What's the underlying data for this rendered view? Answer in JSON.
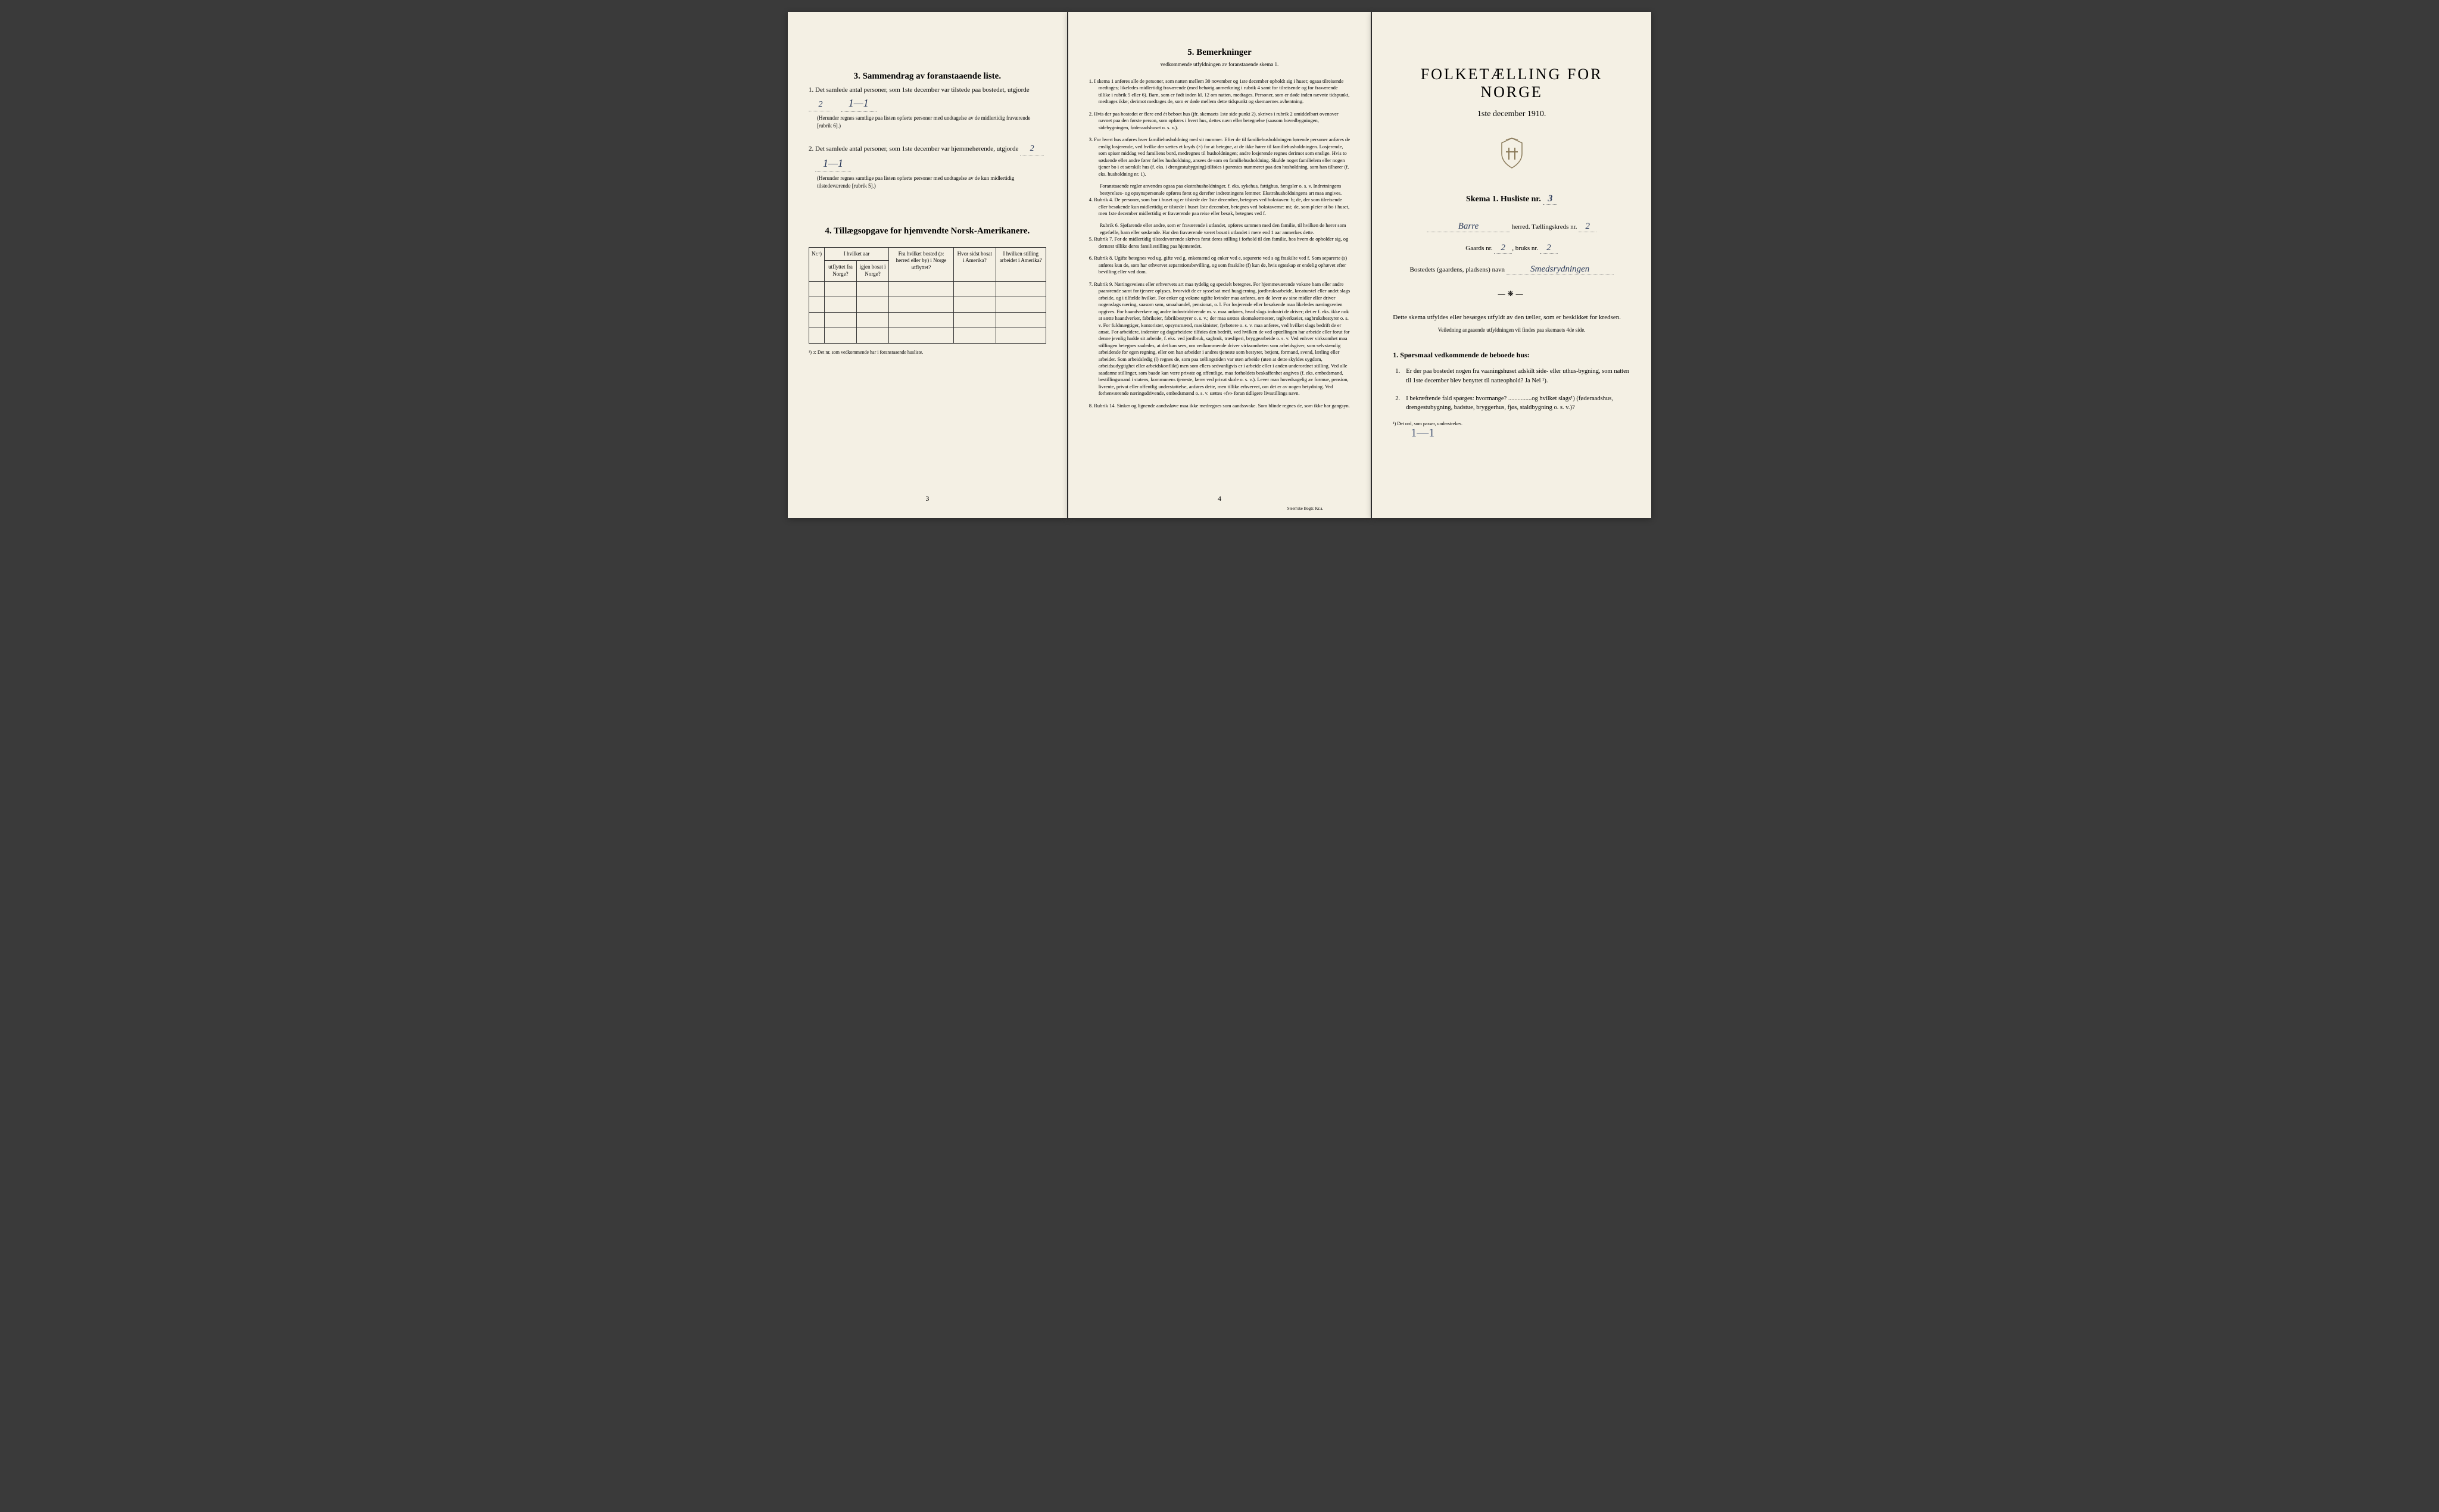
{
  "colors": {
    "paper": "#f4f0e4",
    "ink": "#1a1a1a",
    "handwriting": "#2a3a5a",
    "border": "#333333",
    "background": "#3a3a3a"
  },
  "typography": {
    "body_font": "Georgia serif",
    "handwriting_font": "cursive italic",
    "base_size_pt": 11,
    "small_size_pt": 9,
    "title_size_pt": 26
  },
  "page_left": {
    "section3": {
      "title": "3.  Sammendrag av foranstaaende liste.",
      "item1": {
        "text_before": "1.  Det samlede antal personer, som 1ste december var tilstede paa bostedet, utgjorde",
        "value": "2",
        "handwriting_mark": "1—1",
        "note": "(Herunder regnes samtlige paa listen opførte personer med undtagelse av de midlertidig fraværende [rubrik 6].)"
      },
      "item2": {
        "text_before": "2.  Det samlede antal personer, som 1ste december var hjemmehørende, utgjorde",
        "value": "2",
        "handwriting_mark": "1—1",
        "note": "(Herunder regnes samtlige paa listen opførte personer med undtagelse av de kun midlertidig tilstedeværende [rubrik 5].)"
      }
    },
    "section4": {
      "title": "4.  Tillægsopgave for hjemvendte Norsk-Amerikanere.",
      "table": {
        "headers": {
          "col1": "Nr.¹)",
          "col2_top": "I hvilket aar",
          "col2a": "utflyttet fra Norge?",
          "col2b": "igjen bosat i Norge?",
          "col3": "Fra hvilket bosted (ɔ: herred eller by) i Norge utflyttet?",
          "col4": "Hvor sidst bosat i Amerika?",
          "col5": "I hvilken stilling arbeidet i Amerika?"
        },
        "rows": [
          [
            "",
            "",
            "",
            "",
            ""
          ],
          [
            "",
            "",
            "",
            "",
            ""
          ],
          [
            "",
            "",
            "",
            "",
            ""
          ],
          [
            "",
            "",
            "",
            "",
            ""
          ]
        ],
        "row_count": 4
      },
      "table_note": "¹) ɔ: Det nr. som vedkommende har i foranstaaende husliste."
    },
    "page_number": "3"
  },
  "page_center": {
    "section5": {
      "title": "5.  Bemerkninger",
      "subtitle": "vedkommende utfyldningen av foranstaaende skema 1.",
      "items": [
        {
          "num": "1",
          "text": "I skema 1 anføres alle de personer, som natten mellem 30 november og 1ste december opholdt sig i huset; ogsaa tilreisende medtages; likeledes midlertidig fraværende (med behørig anmerkning i rubrik 4 samt for tilreisende og for fraværende tillike i rubrik 5 eller 6). Barn, som er født inden kl. 12 om natten, medtages. Personer, som er døde inden nævnte tidspunkt, medtages ikke; derimot medtages de, som er døde mellem dette tidspunkt og skemaernes avhentning."
        },
        {
          "num": "2",
          "text": "Hvis der paa bostedet er flere end ét beboet hus (jfr. skemaets 1ste side punkt 2), skrives i rubrik 2 umiddelbart ovenover navnet paa den første person, som opføres i hvert hus, dettes navn eller betegnelse (saasom hovedbygningen, sidebygningen, føderaadshuset o. s. v.)."
        },
        {
          "num": "3",
          "text": "For hvert hus anføres hver familiehusholdning med sit nummer. Efter de til familiehusholdningen hørende personer anføres de enslig losjerende, ved hvilke der sættes et kryds (×) for at betegne, at de ikke hører til familiehusholdningen. Losjerende, som spiser middag ved familiens bord, medregnes til husholdningen; andre losjerende regnes derimot som enslige. Hvis to søskende eller andre fører fælles husholdning, ansees de som en familiehusholdning. Skulde noget familielem eller nogen tjener bo i et særskilt hus (f. eks. i drengestubygning) tilføies i parentes nummeret paa den husholdning, som han tilhører (f. eks. husholdning nr. 1).",
          "sub": "Foranstaaende regler anvendes ogsaa paa ekstrahusholdninger, f. eks. sykehus, fattighus, fængsler o. s. v. Indretningens bestyrelses- og opsynspersonale opføres først og derefter indretningens lemmer. Ekstrahusholdningens art maa angives."
        },
        {
          "num": "4",
          "text": "Rubrik 4. De personer, som bor i huset og er tilstede der 1ste december, betegnes ved bokstaven: b; de, der som tilreisende eller besøkende kun midlertidig er tilstede i huset 1ste december, betegnes ved bokstaverne: mt; de, som pleier at bo i huset, men 1ste december midlertidig er fraværende paa reise eller besøk, betegnes ved f.",
          "sub": "Rubrik 6. Sjøfarende eller andre, som er fraværende i utlandet, opføres sammen med den familie, til hvilken de hører som egtefælle, barn eller søskende.\nHar den fraværende været bosat i utlandet i mere end 1 aar anmerkes dette."
        },
        {
          "num": "5",
          "text": "Rubrik 7. For de midlertidig tilstedeværende skrives først deres stilling i forhold til den familie, hos hvem de opholder sig, og dernæst tillike deres familiestilling paa hjemstedet."
        },
        {
          "num": "6",
          "text": "Rubrik 8. Ugifte betegnes ved ug, gifte ved g, enkemænd og enker ved e, separerte ved s og fraskilte ved f. Som separerte (s) anføres kun de, som har erhvervet separationsbevilling, og som fraskilte (f) kun de, hvis egteskap er endelig ophævet efter bevilling eller ved dom."
        },
        {
          "num": "7",
          "text": "Rubrik 9. Næringsveiens eller erhvervets art maa tydelig og specielt betegnes.\nFor hjemmeværende voksne barn eller andre paarørende samt for tjenere oplyses, hvorvidt de er sysselsat med husgjerning, jordbruksarbeide, kreaturstel eller andet slags arbeide, og i tilfælde hvilket. For enker og voksne ugifte kvinder maa anføres, om de lever av sine midler eller driver nogenslags næring, saasom søm, smaahandel, pensionat, o. l.\nFor losjerende eller besøkende maa likeledes næringsveien opgives.\nFor haandverkere og andre industridrivende m. v. maa anføres, hvad slags industri de driver; det er f. eks. ikke nok at sætte haandverker, fabrikeier, fabrikbestyrer o. s. v.; der maa sættes skomakermester, teglverkseier, sagbruksbestyrer o. s. v.\nFor fuldmægtiger, kontorister, opsynsmænd, maskinister, fyrbøtere o. s. v. maa anføres, ved hvilket slags bedrift de er ansat.\nFor arbeidere, inderster og dagarbeidere tilføies den bedrift, ved hvilken de ved optællingen har arbeide eller forut for denne jevnlig hadde sit arbeide, f. eks. ved jordbruk, sagbruk, træsliperi, bryggearbeide o. s. v.\nVed enhver virksomhet maa stillingen betegnes saaledes, at det kan sees, om vedkommende driver virksomheten som arbeidsgiver, som selvstændig arbeidende for egen regning, eller om han arbeider i andres tjeneste som bestyrer, betjent, formand, svend, lærling eller arbeider.\nSom arbeidsledig (l) regnes de, som paa tællingstiden var uten arbeide (uten at dette skyldes sygdom, arbeidsudygtighet eller arbeidskonflikt) men som ellers sedvanligvis er i arbeide eller i anden underordnet stilling.\nVed alle saadanne stillinger, som baade kan være private og offentlige, maa forholdets beskaffenhet angives (f. eks. embedsmand, bestillingsmand i statens, kommunens tjeneste, lærer ved privat skole o. s. v.).\nLever man hovedsagelig av formue, pension, livrente, privat eller offentlig understøttelse, anføres dette, men tillike erhvervet, om det er av nogen betydning.\nVed forhenværende næringsdrivende, embedsmænd o. s. v. sættes «fv» foran tidligere livsstillings navn."
        },
        {
          "num": "8",
          "text": "Rubrik 14. Sinker og lignende aandssløve maa ikke medregnes som aandssvake.\nSom blinde regnes de, som ikke har gangsyn."
        }
      ]
    },
    "page_number": "4",
    "printer": "Steen'ske Bogtr.  Kr.a."
  },
  "page_right": {
    "title_main": "FOLKETÆLLING FOR NORGE",
    "title_date": "1ste december 1910.",
    "skema_label": "Skema 1.  Husliste nr.",
    "skema_value": "3",
    "herred_label": "herred.   Tællingskreds nr.",
    "herred_value": "Barre",
    "kreds_value": "2",
    "gaards_label": "Gaards nr.",
    "gaards_value": "2",
    "bruks_label": "bruks nr.",
    "bruks_value": "2",
    "bosted_label": "Bostedets (gaardens, pladsens) navn",
    "bosted_value": "Smedsrydningen",
    "instruction": "Dette skema utfyldes eller besørges utfyldt av den tæller, som er beskikket for kredsen.",
    "instruction_sub": "Veiledning angaaende utfyldningen vil findes paa skemaets 4de side.",
    "q1_title": "1. Spørsmaal vedkommende de beboede hus:",
    "q1_items": [
      {
        "num": "1.",
        "text": "Er der paa bostedet nogen fra vaaningshuset adskilt side- eller uthus-bygning, som natten til 1ste december blev benyttet til natteophold?    Ja    Nei ¹)."
      },
      {
        "num": "2.",
        "text": "I bekræftende fald spørges: hvormange? ...............og hvilket slags¹) (føderaadshus, drengestubygning, badstue, bryggerhus, fjøs, staldbygning o. s. v.)?"
      }
    ],
    "footnote": "¹) Det ord, som passer, understrekes.",
    "handwriting_dash": "1—1"
  }
}
